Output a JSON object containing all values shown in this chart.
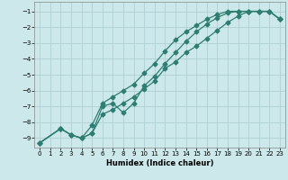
{
  "xlabel": "Humidex (Indice chaleur)",
  "bg_color": "#cce8ea",
  "grid_color": "#b0d0d4",
  "line_color": "#2e7d72",
  "xlim": [
    -0.5,
    23.5
  ],
  "ylim": [
    -9.6,
    -0.4
  ],
  "xticks": [
    0,
    1,
    2,
    3,
    4,
    5,
    6,
    7,
    8,
    9,
    10,
    11,
    12,
    13,
    14,
    15,
    16,
    17,
    18,
    19,
    20,
    21,
    22,
    23
  ],
  "yticks": [
    -1,
    -2,
    -3,
    -4,
    -5,
    -6,
    -7,
    -8,
    -9
  ],
  "line1_x": [
    0,
    2,
    3,
    4,
    5,
    6,
    7,
    8,
    9,
    10,
    11,
    12,
    13,
    14,
    15,
    16,
    17,
    18,
    19,
    20,
    21,
    22,
    23
  ],
  "line1_y": [
    -9.3,
    -8.4,
    -8.8,
    -9.0,
    -8.7,
    -7.5,
    -7.2,
    -6.8,
    -6.4,
    -5.9,
    -5.4,
    -4.6,
    -4.2,
    -3.6,
    -3.2,
    -2.7,
    -2.2,
    -1.7,
    -1.3,
    -1.0,
    -1.0,
    -1.0,
    -1.5
  ],
  "line2_x": [
    0,
    2,
    3,
    4,
    5,
    6,
    7,
    8,
    9,
    10,
    11,
    12,
    13,
    14,
    15,
    16,
    17,
    18,
    19,
    20,
    21,
    22,
    23
  ],
  "line2_y": [
    -9.3,
    -8.4,
    -8.8,
    -9.0,
    -8.7,
    -7.0,
    -6.8,
    -7.4,
    -6.8,
    -5.7,
    -5.1,
    -4.3,
    -3.6,
    -2.9,
    -2.3,
    -1.8,
    -1.4,
    -1.1,
    -1.0,
    -1.0,
    -1.0,
    -1.0,
    -1.5
  ],
  "line3_x": [
    0,
    2,
    3,
    4,
    5,
    6,
    7,
    8,
    9,
    10,
    11,
    12,
    13,
    14,
    15,
    16,
    17,
    18,
    19,
    20,
    21,
    22,
    23
  ],
  "line3_y": [
    -9.3,
    -8.4,
    -8.8,
    -9.0,
    -8.2,
    -6.8,
    -6.4,
    -6.0,
    -5.6,
    -4.9,
    -4.3,
    -3.5,
    -2.8,
    -2.3,
    -1.9,
    -1.5,
    -1.2,
    -1.0,
    -1.0,
    -1.0,
    -1.0,
    -1.0,
    -1.5
  ],
  "marker": "D",
  "markersize": 2.5,
  "linewidth": 0.9
}
